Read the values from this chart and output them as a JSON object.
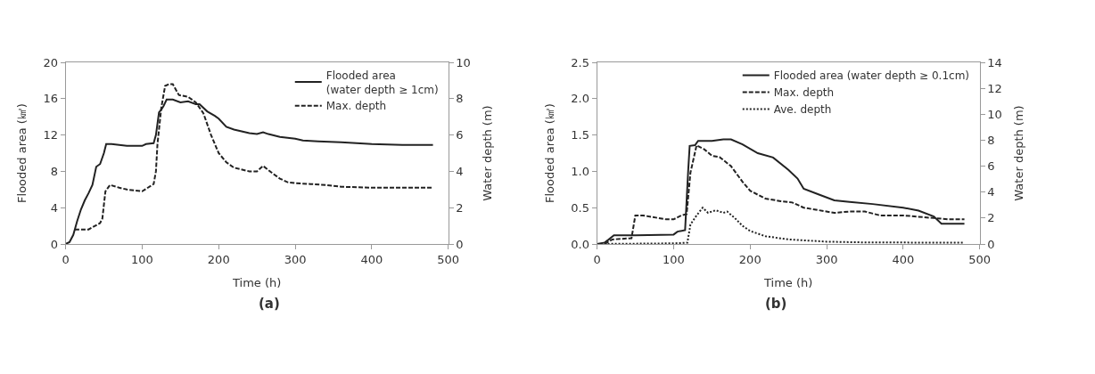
{
  "chart_data": [
    {
      "type": "line",
      "title": "(a)",
      "xlabel": "Time (h)",
      "ylabel": "Flooded area (㎢)",
      "y2label": "Water depth (m)",
      "xlim": [
        0,
        500
      ],
      "xticks": [
        0,
        100,
        200,
        300,
        400,
        500
      ],
      "ylim": [
        0,
        20
      ],
      "yticks": [
        0,
        4,
        8,
        12,
        16,
        20
      ],
      "y2lim": [
        0,
        10
      ],
      "y2ticks": [
        0,
        2,
        4,
        6,
        8,
        10
      ],
      "legend": "top right",
      "series": [
        {
          "name": "Flooded area\n(water depth ≥ 1cm)",
          "color": "#222222",
          "line_style": "solid",
          "x": [
            0,
            5,
            10,
            15,
            20,
            25,
            30,
            35,
            40,
            45,
            50,
            53,
            60,
            80,
            90,
            100,
            105,
            115,
            118,
            122,
            125,
            128,
            132,
            140,
            150,
            160,
            170,
            175,
            185,
            195,
            200,
            210,
            220,
            240,
            250,
            258,
            265,
            280,
            300,
            310,
            330,
            360,
            400,
            440,
            480
          ],
          "values": [
            0,
            0.2,
            1,
            2.5,
            3.8,
            4.8,
            5.6,
            6.5,
            8.5,
            8.8,
            10,
            11,
            11,
            10.8,
            10.8,
            10.8,
            11,
            11.1,
            12,
            14.5,
            14.8,
            15.2,
            15.9,
            15.9,
            15.6,
            15.7,
            15.4,
            15.4,
            14.6,
            14.1,
            13.8,
            12.9,
            12.6,
            12.2,
            12.1,
            12.3,
            12.1,
            11.8,
            11.6,
            11.4,
            11.3,
            11.2,
            11,
            10.9,
            10.9
          ]
        },
        {
          "name": "Max. depth",
          "color": "#222222",
          "line_style": "dashed",
          "axis": "y2",
          "x": [
            12,
            30,
            45,
            48,
            52,
            58,
            70,
            80,
            100,
            115,
            118,
            120,
            125,
            130,
            135,
            140,
            148,
            160,
            170,
            180,
            190,
            200,
            210,
            220,
            240,
            250,
            258,
            270,
            280,
            290,
            300,
            320,
            340,
            360,
            400,
            480
          ],
          "values": [
            0.8,
            0.8,
            1.15,
            1.4,
            2.9,
            3.25,
            3.1,
            3,
            2.9,
            3.3,
            4,
            5.5,
            7.5,
            8.7,
            8.8,
            8.8,
            8.2,
            8.1,
            7.8,
            7.2,
            6,
            5,
            4.5,
            4.2,
            4,
            4,
            4.3,
            3.9,
            3.6,
            3.4,
            3.35,
            3.3,
            3.25,
            3.15,
            3.1,
            3.1
          ]
        }
      ]
    },
    {
      "type": "line",
      "title": "(b)",
      "xlabel": "Time (h)",
      "ylabel": "Flooded area (㎢)",
      "y2label": "Water depth (m)",
      "xlim": [
        0,
        500
      ],
      "xticks": [
        0,
        100,
        200,
        300,
        400,
        500
      ],
      "ylim": [
        0,
        2.5
      ],
      "yticks": [
        {
          "value": 0,
          "label": "0.0"
        },
        {
          "value": 0.5,
          "label": "0.5"
        },
        {
          "value": 1,
          "label": "1.0"
        },
        {
          "value": 1.5,
          "label": "1.5"
        },
        {
          "value": 2,
          "label": "2.0"
        },
        {
          "value": 2.5,
          "label": "2.5"
        }
      ],
      "y2lim": [
        0,
        14
      ],
      "y2ticks": [
        0,
        2,
        4,
        6,
        8,
        10,
        12,
        14
      ],
      "legend": "top right",
      "series": [
        {
          "name": "Flooded area (water depth ≥ 0.1cm)",
          "color": "#222222",
          "line_style": "solid",
          "x": [
            0,
            10,
            15,
            22,
            50,
            100,
            105,
            115,
            119,
            121,
            128,
            132,
            150,
            165,
            175,
            190,
            210,
            230,
            250,
            262,
            270,
            290,
            310,
            330,
            360,
            400,
            420,
            440,
            450,
            480
          ],
          "values": [
            0,
            0.02,
            0.06,
            0.12,
            0.12,
            0.13,
            0.17,
            0.19,
            1,
            1.35,
            1.36,
            1.42,
            1.42,
            1.44,
            1.44,
            1.37,
            1.25,
            1.19,
            1.02,
            0.9,
            0.76,
            0.68,
            0.6,
            0.58,
            0.55,
            0.5,
            0.46,
            0.38,
            0.28,
            0.28
          ]
        },
        {
          "name": "Max. depth",
          "color": "#222222",
          "line_style": "dashed",
          "axis": "y2",
          "x": [
            10,
            20,
            45,
            50,
            60,
            90,
            100,
            110,
            117,
            122,
            130,
            140,
            150,
            160,
            175,
            190,
            200,
            220,
            240,
            255,
            270,
            290,
            310,
            330,
            350,
            370,
            400,
            420,
            440,
            460,
            480
          ],
          "values": [
            0,
            0.35,
            0.45,
            2.2,
            2.2,
            1.9,
            1.9,
            2.2,
            2.3,
            5.5,
            7.6,
            7.3,
            6.8,
            6.7,
            6,
            4.8,
            4.1,
            3.5,
            3.3,
            3.2,
            2.8,
            2.6,
            2.4,
            2.5,
            2.5,
            2.2,
            2.2,
            2.1,
            2,
            1.9,
            1.9
          ]
        },
        {
          "name": "Ave. depth",
          "color": "#222222",
          "line_style": "dotted",
          "axis": "y2",
          "x": [
            0,
            100,
            118,
            122,
            130,
            138,
            145,
            155,
            165,
            170,
            180,
            190,
            200,
            220,
            250,
            300,
            350,
            480
          ],
          "values": [
            0,
            0.05,
            0.1,
            1.5,
            2.2,
            2.8,
            2.4,
            2.6,
            2.4,
            2.5,
            2,
            1.4,
            1,
            0.6,
            0.35,
            0.18,
            0.12,
            0.1
          ]
        }
      ]
    }
  ]
}
